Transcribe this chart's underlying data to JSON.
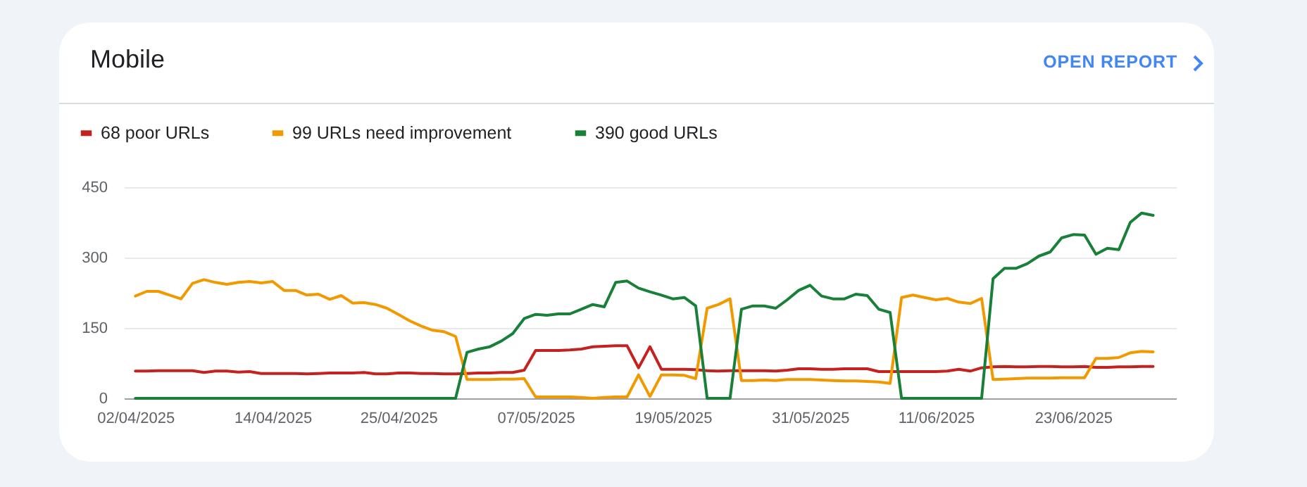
{
  "chart_data": {
    "type": "line",
    "title": "Mobile",
    "annotations": [
      "OPEN REPORT"
    ],
    "x": [
      "2025-04-02",
      "2025-04-03",
      "2025-04-04",
      "2025-04-05",
      "2025-04-06",
      "2025-04-07",
      "2025-04-08",
      "2025-04-09",
      "2025-04-10",
      "2025-04-11",
      "2025-04-12",
      "2025-04-13",
      "2025-04-14",
      "2025-04-15",
      "2025-04-16",
      "2025-04-17",
      "2025-04-18",
      "2025-04-19",
      "2025-04-20",
      "2025-04-21",
      "2025-04-22",
      "2025-04-23",
      "2025-04-24",
      "2025-04-25",
      "2025-04-26",
      "2025-04-27",
      "2025-04-28",
      "2025-04-29",
      "2025-04-30",
      "2025-05-01",
      "2025-05-02",
      "2025-05-03",
      "2025-05-04",
      "2025-05-05",
      "2025-05-06",
      "2025-05-07",
      "2025-05-08",
      "2025-05-09",
      "2025-05-10",
      "2025-05-11",
      "2025-05-12",
      "2025-05-13",
      "2025-05-14",
      "2025-05-15",
      "2025-05-16",
      "2025-05-17",
      "2025-05-18",
      "2025-05-19",
      "2025-05-20",
      "2025-05-21",
      "2025-05-22",
      "2025-05-23",
      "2025-05-24",
      "2025-05-25",
      "2025-05-26",
      "2025-05-27",
      "2025-05-28",
      "2025-05-29",
      "2025-05-30",
      "2025-05-31",
      "2025-06-01",
      "2025-06-02",
      "2025-06-03",
      "2025-06-04",
      "2025-06-05",
      "2025-06-06",
      "2025-06-07",
      "2025-06-08",
      "2025-06-09",
      "2025-06-10",
      "2025-06-11",
      "2025-06-12",
      "2025-06-13",
      "2025-06-14",
      "2025-06-15",
      "2025-06-16",
      "2025-06-17",
      "2025-06-18",
      "2025-06-19",
      "2025-06-20",
      "2025-06-21",
      "2025-06-22",
      "2025-06-23",
      "2025-06-24",
      "2025-06-25",
      "2025-06-26",
      "2025-06-27",
      "2025-06-28",
      "2025-06-29",
      "2025-06-30"
    ],
    "series": [
      {
        "name": "68 poor URLs",
        "color": "#c5221f",
        "values": [
          58,
          58,
          59,
          59,
          59,
          59,
          55,
          58,
          58,
          56,
          57,
          53,
          53,
          53,
          53,
          52,
          53,
          54,
          54,
          54,
          55,
          52,
          52,
          54,
          54,
          53,
          53,
          52,
          52,
          53,
          54,
          54,
          55,
          55,
          60,
          102,
          102,
          102,
          103,
          105,
          110,
          111,
          112,
          112,
          65,
          110,
          62,
          62,
          62,
          61,
          59,
          58,
          59,
          59,
          59,
          59,
          58,
          60,
          63,
          63,
          62,
          62,
          63,
          63,
          63,
          57,
          57,
          57,
          57,
          57,
          57,
          58,
          62,
          58,
          65,
          67,
          68,
          67,
          67,
          68,
          68,
          67,
          67,
          68,
          66,
          66,
          67,
          67,
          68,
          68
        ]
      },
      {
        "name": "99 URLs need improvement",
        "color": "#f29900",
        "values": [
          218,
          228,
          228,
          220,
          212,
          245,
          253,
          247,
          243,
          247,
          249,
          246,
          249,
          230,
          230,
          220,
          222,
          211,
          219,
          203,
          204,
          200,
          192,
          179,
          165,
          154,
          145,
          142,
          132,
          40,
          40,
          40,
          41,
          41,
          42,
          3,
          3,
          3,
          3,
          2,
          0,
          2,
          3,
          3,
          50,
          4,
          50,
          50,
          49,
          42,
          192,
          200,
          212,
          38,
          38,
          39,
          38,
          40,
          40,
          40,
          39,
          38,
          37,
          37,
          36,
          35,
          32,
          215,
          220,
          215,
          210,
          213,
          205,
          202,
          213,
          40,
          41,
          42,
          43,
          43,
          43,
          44,
          44,
          44,
          85,
          85,
          87,
          97,
          100,
          99
        ]
      },
      {
        "name": "390 good URLs",
        "color": "#188038",
        "values": [
          0,
          0,
          0,
          0,
          0,
          0,
          0,
          0,
          0,
          0,
          0,
          0,
          0,
          0,
          0,
          0,
          0,
          0,
          0,
          0,
          0,
          0,
          0,
          0,
          0,
          0,
          0,
          0,
          0,
          98,
          105,
          110,
          122,
          138,
          170,
          179,
          177,
          180,
          180,
          190,
          200,
          195,
          247,
          250,
          235,
          227,
          220,
          212,
          215,
          197,
          0,
          0,
          0,
          190,
          197,
          197,
          192,
          210,
          230,
          241,
          218,
          212,
          212,
          222,
          219,
          190,
          183,
          0,
          0,
          0,
          0,
          0,
          0,
          0,
          0,
          255,
          277,
          277,
          287,
          303,
          312,
          342,
          349,
          348,
          307,
          320,
          317,
          375,
          395,
          390
        ]
      }
    ],
    "xlim": [
      "2025-04-01",
      "2025-07-02"
    ],
    "xticks": [
      {
        "value": "2025-04-02",
        "label": "02/04/2025"
      },
      {
        "value": "2025-04-14",
        "label": "14/04/2025"
      },
      {
        "value": "2025-04-25",
        "label": "25/04/2025"
      },
      {
        "value": "2025-05-07",
        "label": "07/05/2025"
      },
      {
        "value": "2025-05-19",
        "label": "19/05/2025"
      },
      {
        "value": "2025-05-31",
        "label": "31/05/2025"
      },
      {
        "value": "2025-06-11",
        "label": "11/06/2025"
      },
      {
        "value": "2025-06-23",
        "label": "23/06/2025"
      }
    ],
    "ylim": [
      0,
      450
    ],
    "yticks": [
      0,
      150,
      300,
      450
    ],
    "grid": "y",
    "legend": "top left",
    "line_style": "solid"
  }
}
